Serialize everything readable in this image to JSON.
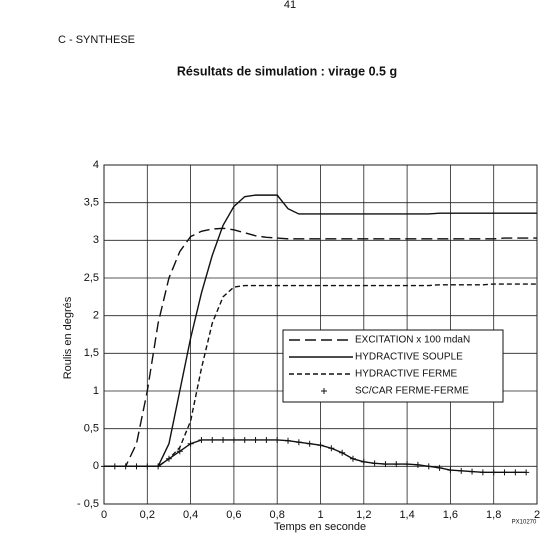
{
  "page_number": "41",
  "section": "C - SYNTHESE",
  "figure_code": "PX10270",
  "chart_data": {
    "type": "line",
    "title": "Résultats de simulation : virage 0.5 g",
    "x_label": "Temps en seconde",
    "y_label": "Roulis en degrés",
    "x": [
      0,
      0.05,
      0.1,
      0.15,
      0.2,
      0.25,
      0.3,
      0.35,
      0.4,
      0.45,
      0.5,
      0.55,
      0.6,
      0.65,
      0.7,
      0.75,
      0.8,
      0.85,
      0.9,
      0.95,
      1.0,
      1.05,
      1.1,
      1.15,
      1.2,
      1.25,
      1.3,
      1.35,
      1.4,
      1.45,
      1.5,
      1.55,
      1.6,
      1.65,
      1.7,
      1.75,
      1.8,
      1.85,
      1.9,
      1.95,
      2.0
    ],
    "series": [
      {
        "name": "EXCITATION x 100 mdaN",
        "color": "#111111",
        "dash": "11,5",
        "marker": "none",
        "values": [
          0,
          0,
          0,
          0.3,
          1.0,
          1.9,
          2.5,
          2.85,
          3.05,
          3.12,
          3.15,
          3.16,
          3.14,
          3.1,
          3.06,
          3.04,
          3.03,
          3.02,
          3.02,
          3.02,
          3.02,
          3.02,
          3.02,
          3.02,
          3.02,
          3.02,
          3.02,
          3.02,
          3.02,
          3.02,
          3.02,
          3.02,
          3.02,
          3.02,
          3.02,
          3.02,
          3.02,
          3.03,
          3.03,
          3.03,
          3.03
        ]
      },
      {
        "name": "HYDRACTIVE SOUPLE",
        "color": "#111111",
        "dash": "none",
        "marker": "none",
        "values": [
          0,
          0,
          0,
          0,
          0,
          0,
          0.3,
          1.0,
          1.7,
          2.3,
          2.8,
          3.2,
          3.45,
          3.58,
          3.6,
          3.6,
          3.6,
          3.42,
          3.35,
          3.35,
          3.35,
          3.35,
          3.35,
          3.35,
          3.35,
          3.35,
          3.35,
          3.35,
          3.35,
          3.35,
          3.35,
          3.36,
          3.36,
          3.36,
          3.36,
          3.36,
          3.36,
          3.36,
          3.36,
          3.36,
          3.36
        ]
      },
      {
        "name": "HYDRACTIVE FERME",
        "color": "#111111",
        "dash": "5,3",
        "marker": "none",
        "values": [
          0,
          0,
          0,
          0,
          0,
          0,
          0.1,
          0.25,
          0.6,
          1.3,
          1.9,
          2.25,
          2.38,
          2.4,
          2.4,
          2.4,
          2.4,
          2.4,
          2.4,
          2.4,
          2.4,
          2.4,
          2.4,
          2.4,
          2.4,
          2.4,
          2.4,
          2.4,
          2.4,
          2.4,
          2.4,
          2.41,
          2.41,
          2.41,
          2.41,
          2.41,
          2.42,
          2.42,
          2.42,
          2.42,
          2.42
        ]
      },
      {
        "name": "SC/CAR FERME-FERME",
        "color": "#111111",
        "dash": "none",
        "marker": "plus",
        "values": [
          0,
          0,
          0,
          0,
          0,
          0,
          0.1,
          0.2,
          0.3,
          0.35,
          0.35,
          0.35,
          0.35,
          0.35,
          0.35,
          0.35,
          0.35,
          0.34,
          0.32,
          0.3,
          0.28,
          0.24,
          0.18,
          0.1,
          0.06,
          0.04,
          0.03,
          0.03,
          0.03,
          0.02,
          0.0,
          -0.02,
          -0.05,
          -0.06,
          -0.07,
          -0.08,
          -0.08,
          -0.08,
          -0.08,
          -0.08,
          null
        ]
      }
    ],
    "xlim": [
      0,
      2
    ],
    "ylim": [
      -0.5,
      4
    ],
    "xticks": [
      0,
      {
        "value": 0.2,
        "label": "0,2"
      },
      {
        "value": 0.4,
        "label": "0,4"
      },
      {
        "value": 0.6,
        "label": "0,6"
      },
      {
        "value": 0.8,
        "label": "0,8"
      },
      1,
      {
        "value": 1.2,
        "label": "1,2"
      },
      {
        "value": 1.4,
        "label": "1,4"
      },
      {
        "value": 1.6,
        "label": "1,6"
      },
      {
        "value": 1.8,
        "label": "1,8"
      },
      2
    ],
    "yticks": [
      {
        "value": -0.5,
        "label": "- 0,5"
      },
      0,
      {
        "value": 0.5,
        "label": "0,5"
      },
      1,
      {
        "value": 1.5,
        "label": "1,5"
      },
      2,
      {
        "value": 2.5,
        "label": "2,5"
      },
      3,
      {
        "value": 3.5,
        "label": "3,5"
      },
      4
    ],
    "grid": true,
    "legend": "lower right"
  }
}
